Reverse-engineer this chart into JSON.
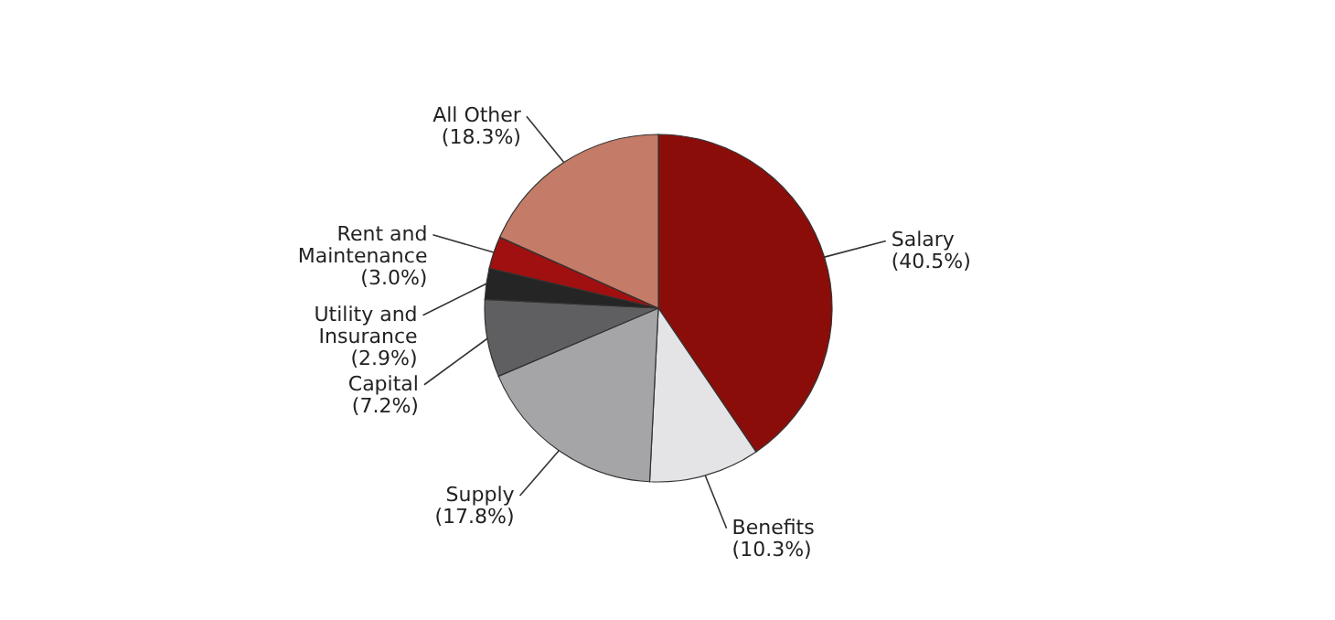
{
  "chart_data": {
    "type": "pie",
    "categories": [
      "Salary",
      "Benefits",
      "Supply",
      "Capital",
      "Utility and Insurance",
      "Rent and Maintenance",
      "All Other"
    ],
    "values": [
      40.5,
      10.3,
      17.8,
      7.2,
      2.9,
      3.0,
      18.3
    ],
    "value_labels": [
      "(40.5%)",
      "(10.3%)",
      "(17.8%)",
      "(7.2%)",
      "(2.9%)",
      "(3.0%)",
      "(18.3%)"
    ],
    "colors": [
      "#8b0d0a",
      "#e4e4e6",
      "#a5a5a8",
      "#5f5f61",
      "#252525",
      "#a01010",
      "#c47b67"
    ],
    "legend": false
  }
}
